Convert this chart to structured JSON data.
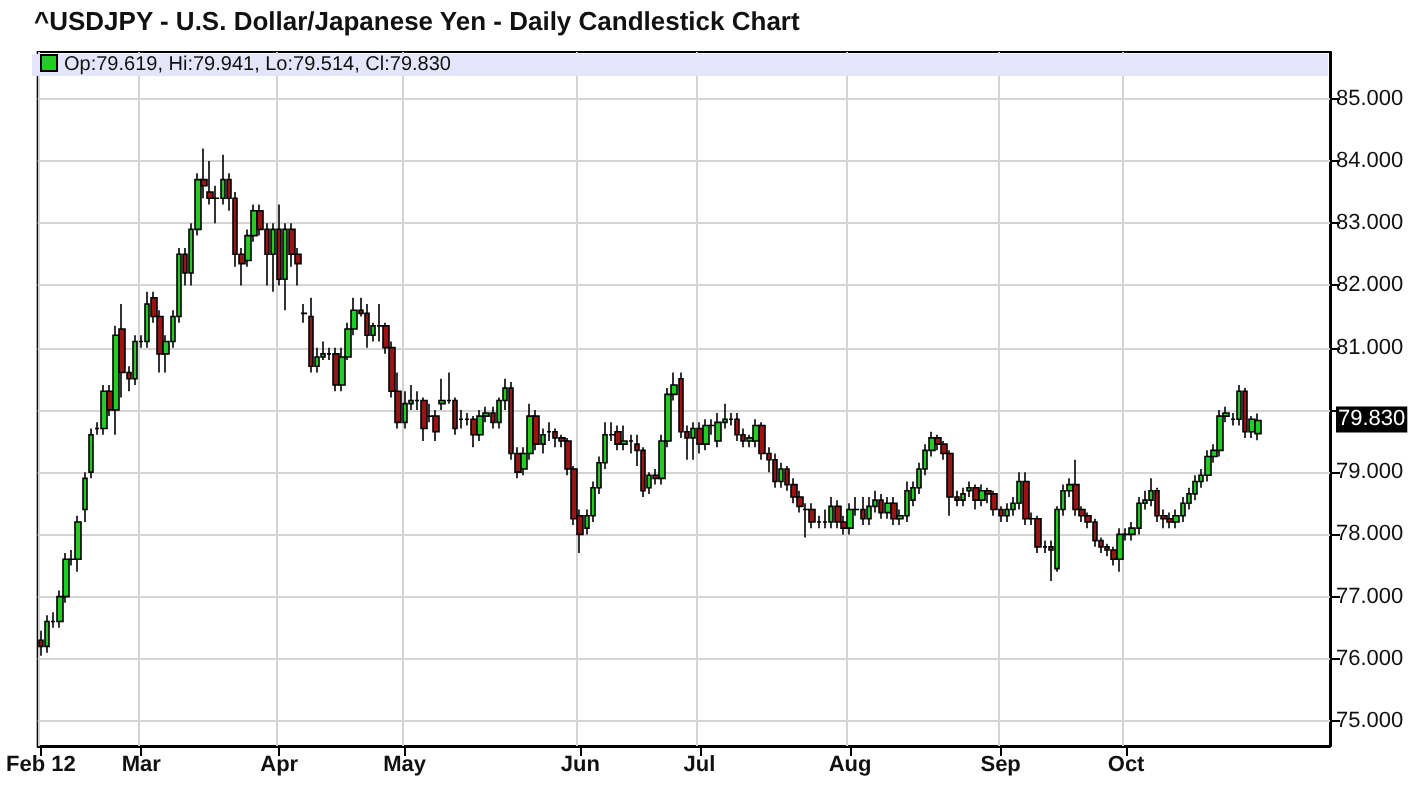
{
  "chart_data": {
    "type": "candlestick",
    "title": "^USDJPY - U.S. Dollar/Japanese Yen - Daily Candlestick Chart",
    "annotations": [
      "Op:79.619, Hi:79.941, Lo:79.514, Cl:79.830",
      "79.830"
    ],
    "categories": [
      "Feb 12",
      null,
      null,
      null,
      null,
      null,
      null,
      null,
      null,
      null,
      null,
      null,
      null,
      null,
      null,
      null,
      "Mar",
      null,
      null,
      null,
      null,
      null,
      null,
      null,
      null,
      null,
      null,
      null,
      null,
      null,
      null,
      null,
      null,
      null,
      null,
      null,
      null,
      null,
      "Apr",
      null,
      null,
      null,
      null,
      null,
      null,
      null,
      null,
      null,
      null,
      null,
      null,
      null,
      null,
      null,
      null,
      null,
      null,
      null,
      "May",
      null,
      null,
      null,
      null,
      null,
      null,
      null,
      null,
      null,
      null,
      null,
      null,
      null,
      null,
      null,
      null,
      null,
      null,
      null,
      null,
      null,
      null,
      null,
      null,
      null,
      null,
      null,
      "Jun",
      null,
      null,
      null,
      null,
      null,
      null,
      null,
      null,
      null,
      null,
      null,
      null,
      null,
      null,
      null,
      null,
      null,
      null,
      "Jul",
      null,
      null,
      null,
      null,
      null,
      null,
      null,
      null,
      null,
      null,
      null,
      null,
      null,
      null,
      null,
      null,
      null,
      null,
      null,
      null,
      null,
      null,
      null,
      "Aug",
      null,
      null,
      null,
      null,
      null,
      null,
      null,
      null,
      null,
      null,
      null,
      null,
      null,
      null,
      null,
      null,
      null,
      null,
      null,
      null,
      null,
      null,
      null,
      "Sep",
      null,
      null,
      null,
      null,
      null,
      null,
      null,
      null,
      null,
      null,
      null,
      null,
      null,
      null,
      null,
      null,
      null,
      null,
      null,
      "Oct",
      null,
      null,
      null,
      null,
      null,
      null,
      null,
      null,
      null,
      null,
      null,
      null,
      null,
      null,
      null,
      null,
      null,
      null,
      null,
      null,
      null
    ],
    "ohlc": [
      [
        76.3,
        76.45,
        76.05,
        76.2
      ],
      [
        76.2,
        76.7,
        76.1,
        76.6
      ],
      [
        76.6,
        76.75,
        76.5,
        76.6
      ],
      [
        76.6,
        77.1,
        76.5,
        77.0
      ],
      [
        77.0,
        77.7,
        76.9,
        77.6
      ],
      [
        77.6,
        77.75,
        77.5,
        77.6
      ],
      [
        77.6,
        78.3,
        77.4,
        78.2
      ],
      [
        78.4,
        79.0,
        78.2,
        78.9
      ],
      [
        79.0,
        79.7,
        78.9,
        79.6
      ],
      [
        79.7,
        79.8,
        79.6,
        79.7
      ],
      [
        79.7,
        80.4,
        79.6,
        80.3
      ],
      [
        80.3,
        80.4,
        79.9,
        80.0
      ],
      [
        80.0,
        81.35,
        79.6,
        81.2
      ],
      [
        81.3,
        81.7,
        80.2,
        80.6
      ],
      [
        80.6,
        80.7,
        80.3,
        80.5
      ],
      [
        80.5,
        81.2,
        80.4,
        81.1
      ],
      [
        81.1,
        81.2,
        81.0,
        81.1
      ],
      [
        81.1,
        81.9,
        81.0,
        81.7
      ],
      [
        81.8,
        81.9,
        81.4,
        81.5
      ],
      [
        81.5,
        81.6,
        80.6,
        80.9
      ],
      [
        80.9,
        81.2,
        80.6,
        81.1
      ],
      [
        81.1,
        81.6,
        81.0,
        81.5
      ],
      [
        81.5,
        82.6,
        81.4,
        82.5
      ],
      [
        82.5,
        82.6,
        82.0,
        82.2
      ],
      [
        82.2,
        83.0,
        82.0,
        82.9
      ],
      [
        82.9,
        83.8,
        82.8,
        83.7
      ],
      [
        83.7,
        84.2,
        83.4,
        83.6
      ],
      [
        83.5,
        84.0,
        83.3,
        83.4
      ],
      [
        83.4,
        83.6,
        83.0,
        83.4
      ],
      [
        83.4,
        84.1,
        83.3,
        83.7
      ],
      [
        83.7,
        83.8,
        83.2,
        83.4
      ],
      [
        83.4,
        83.5,
        82.3,
        82.5
      ],
      [
        82.5,
        82.6,
        82.0,
        82.35
      ],
      [
        82.4,
        82.9,
        82.3,
        82.8
      ],
      [
        82.8,
        83.3,
        82.7,
        83.2
      ],
      [
        83.2,
        83.3,
        82.8,
        82.9
      ],
      [
        82.9,
        83.0,
        82.0,
        82.5
      ],
      [
        82.5,
        83.0,
        81.9,
        82.9
      ],
      [
        82.9,
        83.3,
        82.0,
        82.1
      ],
      [
        82.1,
        83.0,
        81.6,
        82.9
      ],
      [
        82.9,
        83.0,
        82.3,
        82.5
      ],
      [
        82.5,
        82.6,
        82.0,
        82.35
      ],
      [
        81.55,
        81.7,
        81.4,
        81.55
      ],
      [
        81.5,
        81.8,
        80.6,
        80.7
      ],
      [
        80.7,
        81.0,
        80.6,
        80.85
      ],
      [
        80.85,
        81.1,
        80.8,
        80.9
      ],
      [
        80.9,
        81.0,
        80.8,
        80.9
      ],
      [
        80.9,
        81.0,
        80.3,
        80.4
      ],
      [
        80.4,
        81.0,
        80.3,
        80.85
      ],
      [
        80.85,
        81.4,
        80.8,
        81.3
      ],
      [
        81.3,
        81.8,
        81.2,
        81.6
      ],
      [
        81.6,
        81.8,
        81.5,
        81.55
      ],
      [
        81.55,
        81.7,
        81.0,
        81.2
      ],
      [
        81.2,
        81.4,
        81.1,
        81.35
      ],
      [
        81.35,
        81.7,
        81.1,
        81.35
      ],
      [
        81.35,
        81.4,
        80.9,
        81.0
      ],
      [
        81.0,
        81.1,
        80.2,
        80.3
      ],
      [
        80.3,
        80.6,
        79.7,
        79.8
      ],
      [
        79.8,
        80.3,
        79.7,
        80.1
      ],
      [
        80.1,
        80.4,
        80.0,
        80.15
      ],
      [
        80.15,
        80.3,
        80.0,
        80.15
      ],
      [
        80.15,
        80.2,
        79.5,
        79.7
      ],
      [
        79.9,
        80.1,
        79.8,
        79.9
      ],
      [
        79.9,
        80.0,
        79.5,
        79.65
      ],
      [
        80.1,
        80.5,
        80.0,
        80.15
      ],
      [
        80.15,
        80.6,
        80.1,
        80.15
      ],
      [
        80.15,
        80.2,
        79.6,
        79.7
      ],
      [
        79.85,
        80.0,
        79.7,
        79.85
      ],
      [
        79.85,
        79.95,
        79.75,
        79.85
      ],
      [
        79.85,
        79.9,
        79.4,
        79.6
      ],
      [
        79.6,
        80.0,
        79.5,
        79.9
      ],
      [
        79.9,
        80.05,
        79.8,
        79.95
      ],
      [
        79.95,
        80.05,
        79.7,
        79.8
      ],
      [
        79.8,
        80.2,
        79.7,
        80.15
      ],
      [
        80.15,
        80.5,
        80.0,
        80.35
      ],
      [
        80.35,
        80.45,
        79.2,
        79.3
      ],
      [
        79.3,
        79.4,
        78.9,
        79.0
      ],
      [
        79.05,
        79.4,
        78.95,
        79.3
      ],
      [
        79.3,
        80.1,
        79.2,
        79.9
      ],
      [
        79.9,
        80.0,
        79.35,
        79.45
      ],
      [
        79.45,
        79.7,
        79.3,
        79.6
      ],
      [
        79.65,
        79.8,
        79.5,
        79.65
      ],
      [
        79.65,
        79.7,
        79.4,
        79.55
      ],
      [
        79.55,
        79.6,
        79.4,
        79.5
      ],
      [
        79.5,
        79.55,
        78.95,
        79.05
      ],
      [
        79.05,
        79.1,
        78.15,
        78.25
      ],
      [
        78.3,
        78.4,
        77.7,
        78.0
      ],
      [
        78.1,
        78.4,
        78.0,
        78.3
      ],
      [
        78.3,
        78.85,
        78.2,
        78.75
      ],
      [
        78.75,
        79.25,
        78.65,
        79.15
      ],
      [
        79.15,
        79.8,
        79.05,
        79.6
      ],
      [
        79.6,
        79.8,
        79.5,
        79.6
      ],
      [
        79.65,
        79.75,
        79.35,
        79.45
      ],
      [
        79.45,
        79.75,
        79.35,
        79.5
      ],
      [
        79.5,
        79.6,
        79.3,
        79.5
      ],
      [
        79.45,
        79.6,
        79.1,
        79.35
      ],
      [
        79.35,
        79.4,
        78.6,
        78.7
      ],
      [
        78.75,
        79.0,
        78.65,
        78.95
      ],
      [
        78.95,
        79.05,
        78.8,
        78.9
      ],
      [
        78.9,
        79.6,
        78.8,
        79.5
      ],
      [
        79.5,
        80.35,
        79.4,
        80.25
      ],
      [
        80.25,
        80.6,
        80.15,
        80.4
      ],
      [
        80.5,
        80.6,
        79.55,
        79.65
      ],
      [
        79.65,
        79.75,
        79.2,
        79.55
      ],
      [
        79.55,
        79.8,
        79.2,
        79.7
      ],
      [
        79.7,
        79.8,
        79.3,
        79.45
      ],
      [
        79.45,
        79.85,
        79.35,
        79.75
      ],
      [
        79.75,
        79.85,
        79.6,
        79.75
      ],
      [
        79.5,
        79.95,
        79.4,
        79.8
      ],
      [
        79.8,
        80.1,
        79.7,
        79.85
      ],
      [
        79.85,
        79.95,
        79.75,
        79.85
      ],
      [
        79.85,
        79.95,
        79.5,
        79.6
      ],
      [
        79.6,
        79.7,
        79.4,
        79.5
      ],
      [
        79.5,
        79.6,
        79.4,
        79.55
      ],
      [
        79.5,
        79.85,
        79.4,
        79.75
      ],
      [
        79.75,
        79.8,
        79.2,
        79.3
      ],
      [
        79.3,
        79.4,
        79.0,
        79.2
      ],
      [
        79.2,
        79.3,
        78.75,
        78.85
      ],
      [
        78.85,
        79.15,
        78.75,
        79.05
      ],
      [
        79.05,
        79.1,
        78.7,
        78.8
      ],
      [
        78.8,
        78.9,
        78.5,
        78.6
      ],
      [
        78.6,
        78.7,
        78.35,
        78.45
      ],
      [
        78.4,
        78.5,
        77.95,
        78.4
      ],
      [
        78.4,
        78.5,
        78.1,
        78.2
      ],
      [
        78.2,
        78.3,
        78.1,
        78.2
      ],
      [
        78.2,
        78.4,
        78.1,
        78.2
      ],
      [
        78.2,
        78.6,
        78.1,
        78.45
      ],
      [
        78.45,
        78.55,
        78.1,
        78.2
      ],
      [
        78.2,
        78.3,
        78.0,
        78.1
      ],
      [
        78.1,
        78.5,
        78.0,
        78.4
      ],
      [
        78.4,
        78.6,
        78.3,
        78.4
      ],
      [
        78.4,
        78.6,
        78.15,
        78.25
      ],
      [
        78.25,
        78.6,
        78.15,
        78.45
      ],
      [
        78.45,
        78.7,
        78.35,
        78.55
      ],
      [
        78.55,
        78.65,
        78.25,
        78.35
      ],
      [
        78.35,
        78.6,
        78.25,
        78.5
      ],
      [
        78.5,
        78.6,
        78.15,
        78.25
      ],
      [
        78.25,
        78.4,
        78.15,
        78.3
      ],
      [
        78.3,
        78.85,
        78.2,
        78.7
      ],
      [
        78.55,
        78.85,
        78.45,
        78.75
      ],
      [
        78.75,
        79.15,
        78.65,
        79.05
      ],
      [
        79.05,
        79.45,
        78.95,
        79.35
      ],
      [
        79.35,
        79.65,
        79.25,
        79.55
      ],
      [
        79.55,
        79.6,
        79.35,
        79.45
      ],
      [
        79.45,
        79.5,
        79.2,
        79.3
      ],
      [
        79.3,
        79.35,
        78.3,
        78.6
      ],
      [
        78.6,
        78.7,
        78.45,
        78.55
      ],
      [
        78.55,
        78.75,
        78.45,
        78.65
      ],
      [
        78.7,
        78.85,
        78.6,
        78.75
      ],
      [
        78.75,
        78.8,
        78.4,
        78.55
      ],
      [
        78.55,
        78.8,
        78.45,
        78.7
      ],
      [
        78.7,
        78.75,
        78.5,
        78.65
      ],
      [
        78.65,
        78.7,
        78.3,
        78.4
      ],
      [
        78.4,
        78.45,
        78.2,
        78.3
      ],
      [
        78.3,
        78.5,
        78.2,
        78.4
      ],
      [
        78.4,
        78.6,
        78.3,
        78.5
      ],
      [
        78.5,
        79.0,
        78.4,
        78.85
      ],
      [
        78.85,
        79.0,
        78.15,
        78.25
      ],
      [
        78.25,
        78.35,
        78.15,
        78.25
      ],
      [
        78.25,
        78.3,
        77.7,
        77.8
      ],
      [
        77.8,
        77.9,
        77.7,
        77.8
      ],
      [
        77.8,
        77.9,
        77.25,
        77.75
      ],
      [
        77.45,
        78.45,
        77.4,
        78.4
      ],
      [
        78.4,
        78.8,
        78.3,
        78.7
      ],
      [
        78.7,
        78.9,
        78.6,
        78.8
      ],
      [
        78.8,
        79.2,
        78.3,
        78.4
      ],
      [
        78.4,
        78.45,
        78.2,
        78.3
      ],
      [
        78.3,
        78.35,
        78.1,
        78.2
      ],
      [
        78.2,
        78.25,
        77.8,
        77.9
      ],
      [
        77.9,
        77.95,
        77.7,
        77.8
      ],
      [
        77.8,
        77.85,
        77.65,
        77.75
      ],
      [
        77.75,
        77.8,
        77.5,
        77.6
      ],
      [
        77.6,
        78.1,
        77.4,
        78.0
      ],
      [
        78.0,
        78.1,
        77.9,
        78.0
      ],
      [
        78.0,
        78.2,
        77.9,
        78.1
      ],
      [
        78.1,
        78.6,
        78.0,
        78.5
      ],
      [
        78.5,
        78.7,
        78.4,
        78.55
      ],
      [
        78.55,
        78.9,
        78.45,
        78.7
      ],
      [
        78.7,
        78.75,
        78.2,
        78.3
      ],
      [
        78.3,
        78.4,
        78.1,
        78.25
      ],
      [
        78.25,
        78.35,
        78.1,
        78.2
      ],
      [
        78.2,
        78.4,
        78.1,
        78.3
      ],
      [
        78.3,
        78.6,
        78.2,
        78.5
      ],
      [
        78.5,
        78.75,
        78.4,
        78.65
      ],
      [
        78.65,
        78.95,
        78.55,
        78.85
      ],
      [
        78.85,
        79.05,
        78.75,
        78.95
      ],
      [
        78.95,
        79.35,
        78.85,
        79.25
      ],
      [
        79.25,
        79.45,
        79.15,
        79.35
      ],
      [
        79.35,
        80.0,
        79.25,
        79.9
      ],
      [
        79.9,
        80.05,
        79.8,
        79.95
      ],
      [
        79.85,
        79.95,
        79.75,
        79.85
      ],
      [
        79.85,
        80.4,
        79.75,
        80.3
      ],
      [
        80.3,
        80.35,
        79.55,
        79.65
      ],
      [
        79.65,
        79.9,
        79.55,
        79.85
      ],
      [
        79.619,
        79.941,
        79.514,
        79.83
      ]
    ],
    "ylim": [
      74.6,
      85.75
    ],
    "yticks": [
      {
        "value": 75,
        "label": "75.000"
      },
      {
        "value": 76,
        "label": "76.000"
      },
      {
        "value": 77,
        "label": "77.000"
      },
      {
        "value": 78,
        "label": "78.000"
      },
      {
        "value": 79,
        "label": "79.000"
      },
      {
        "value": 80,
        "label": null
      },
      {
        "value": 81,
        "label": "81.000"
      },
      {
        "value": 82,
        "label": "82.000"
      },
      {
        "value": 83,
        "label": "83.000"
      },
      {
        "value": 84,
        "label": "84.000"
      },
      {
        "value": 85,
        "label": "85.000"
      }
    ],
    "grid": true
  }
}
